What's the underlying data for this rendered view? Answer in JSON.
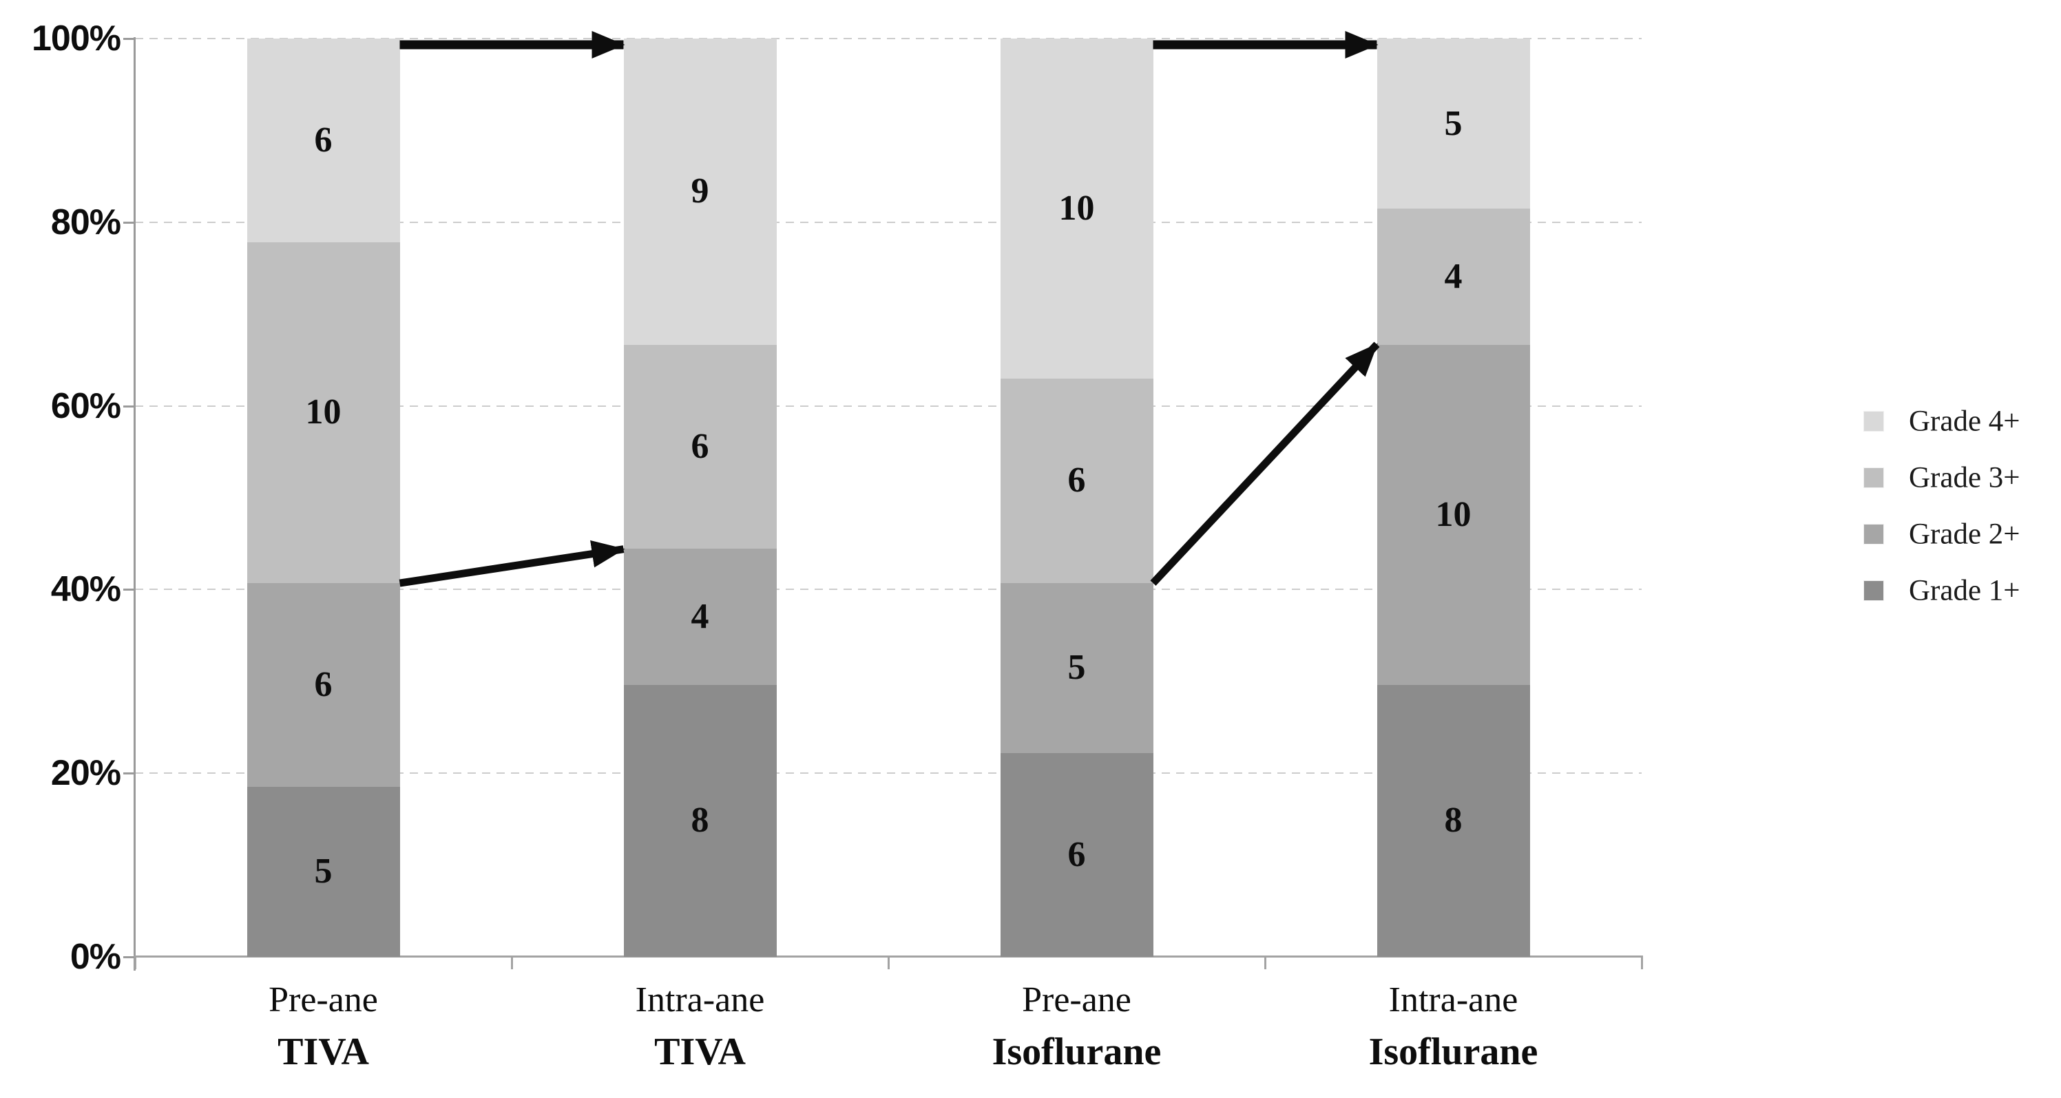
{
  "figure": {
    "background": "#ffffff",
    "text_color": "#0d0d0d"
  },
  "chart_data": {
    "type": "bar",
    "subtype": "stacked-100-percent",
    "title": "",
    "xlabel": "",
    "ylabel": "",
    "categories": [
      {
        "line1": "Pre-ane",
        "line2": "TIVA"
      },
      {
        "line1": "Intra-ane",
        "line2": "TIVA"
      },
      {
        "line1": "Pre-ane",
        "line2": "Isoflurane"
      },
      {
        "line1": "Intra-ane",
        "line2": "Isoflurane"
      }
    ],
    "series": [
      {
        "name": "Grade 1+",
        "color": "#8c8c8c",
        "values": [
          5,
          8,
          6,
          8
        ]
      },
      {
        "name": "Grade 2+",
        "color": "#a6a6a6",
        "values": [
          6,
          4,
          5,
          10
        ]
      },
      {
        "name": "Grade 3+",
        "color": "#bfbfbf",
        "values": [
          10,
          6,
          6,
          4
        ]
      },
      {
        "name": "Grade 4+",
        "color": "#d9d9d9",
        "values": [
          6,
          9,
          10,
          5
        ]
      }
    ],
    "category_totals": [
      27,
      27,
      27,
      27
    ],
    "y_axis": {
      "min": 0,
      "max": 100,
      "ticks": [
        "100%",
        "80%",
        "60%",
        "40%",
        "20%",
        "0%"
      ],
      "tick_percents": [
        100,
        80,
        60,
        40,
        20,
        0
      ],
      "gridlines": "dashed"
    },
    "legend": {
      "position": "right",
      "items": [
        {
          "label": "Grade 4+",
          "color": "#d9d9d9"
        },
        {
          "label": "Grade 3+",
          "color": "#bfbfbf"
        },
        {
          "label": "Grade 2+",
          "color": "#a6a6a6"
        },
        {
          "label": "Grade 1+",
          "color": "#8c8c8c"
        }
      ]
    },
    "annotations": {
      "arrows": [
        {
          "id": "tiva-top-arrow",
          "from_category": 0,
          "to_category": 1,
          "from_pct": 100,
          "to_pct": 100
        },
        {
          "id": "tiva-grade12-shift-arrow",
          "from_category": 0,
          "to_category": 1,
          "from_pct": 40.7,
          "to_pct": 44.4
        },
        {
          "id": "iso-top-arrow",
          "from_category": 2,
          "to_category": 3,
          "from_pct": 100,
          "to_pct": 100
        },
        {
          "id": "iso-grade12-shift-arrow",
          "from_category": 2,
          "to_category": 3,
          "from_pct": 40.7,
          "to_pct": 66.7
        }
      ],
      "arrow_color": "#0d0d0d"
    },
    "colors": {
      "gridline": "#cccccc",
      "axis": "#9a9a9a"
    }
  }
}
